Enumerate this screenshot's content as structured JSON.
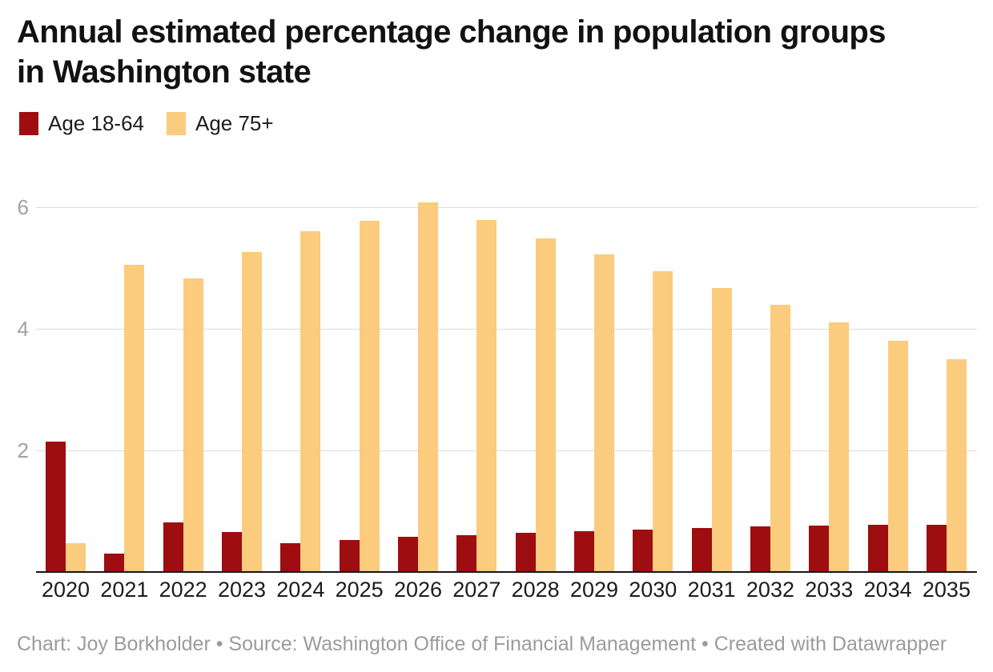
{
  "title": {
    "lines": [
      "Annual estimated percentage change in population groups",
      "in Washington state"
    ],
    "full": "Annual estimated percentage change in population groups in Washington state"
  },
  "legend": {
    "items": [
      {
        "label": "Age 18-64",
        "color": "#9e0d10"
      },
      {
        "label": "Age 75+",
        "color": "#fbcb7e"
      }
    ]
  },
  "footer": {
    "credit": "Chart: Joy Borkholder • Source: Washington Office of Financial Management • Created with Datawrapper"
  },
  "colors": {
    "age_18_64": "#9e0d10",
    "age_75_plus": "#fbcb7e",
    "gridline": "#dcdcdc",
    "axis_line": "#161616",
    "y_tick_text": "#a2a2a2",
    "x_tick_text": "#1c1c1c",
    "footer_text": "#9b9b9b",
    "title_text": "#121212",
    "background": "#ffffff"
  },
  "chart_data": {
    "type": "bar",
    "title": "Annual estimated percentage change in population groups in Washington state",
    "xlabel": "",
    "ylabel": "",
    "categories": [
      "2020",
      "2021",
      "2022",
      "2023",
      "2024",
      "2025",
      "2026",
      "2027",
      "2028",
      "2029",
      "2030",
      "2031",
      "2032",
      "2033",
      "2034",
      "2035"
    ],
    "series": [
      {
        "name": "Age 18-64",
        "color": "#9e0d10",
        "values": [
          2.15,
          0.3,
          0.82,
          0.66,
          0.48,
          0.53,
          0.58,
          0.61,
          0.64,
          0.67,
          0.7,
          0.72,
          0.75,
          0.77,
          0.78,
          0.78
        ]
      },
      {
        "name": "Age 75+",
        "color": "#fbcb7e",
        "values": [
          0.48,
          5.05,
          4.83,
          5.27,
          5.6,
          5.78,
          6.08,
          5.79,
          5.49,
          5.22,
          4.95,
          4.67,
          4.4,
          4.1,
          3.8,
          3.5
        ]
      }
    ],
    "ylim": [
      0,
      6.64
    ],
    "yticks": [
      2,
      4,
      6
    ],
    "grid": true,
    "legend_position": "top-left",
    "unit": "percent"
  }
}
